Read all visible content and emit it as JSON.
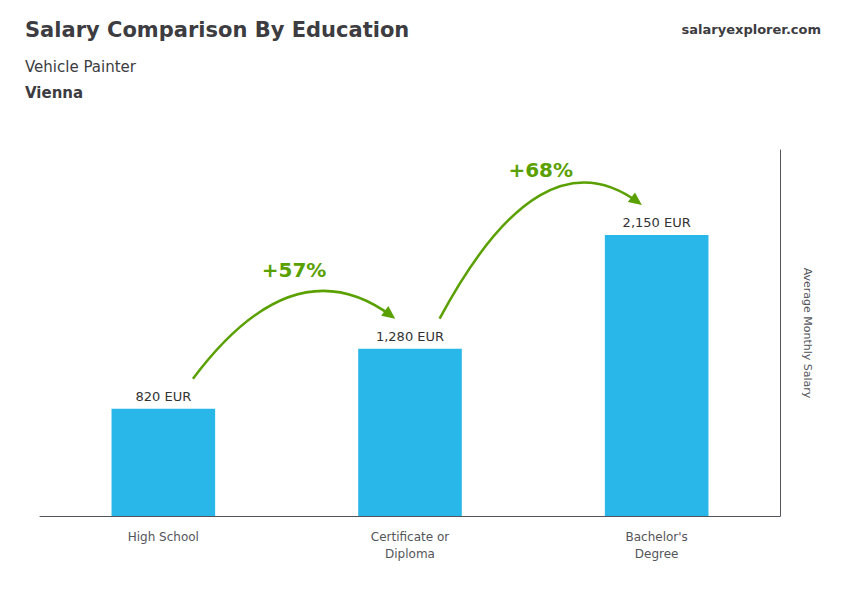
{
  "chart_data": {
    "type": "bar",
    "title": "Salary Comparison By Education",
    "subtitle": [
      "Vehicle Painter",
      "Vienna"
    ],
    "website": "salaryexplorer.com",
    "ylabel": "Average Monthly Salary",
    "categories": [
      "High School",
      "Certificate or\nDiploma",
      "Bachelor's\nDegree"
    ],
    "values": [
      820,
      1280,
      2150
    ],
    "value_labels": [
      "820 EUR",
      "1,280 EUR",
      "2,150 EUR"
    ],
    "data_labels": true,
    "annotations": [
      "+57%",
      "+68%"
    ],
    "color": "#29b6e8",
    "ylim": [
      0,
      2800
    ],
    "grid": false,
    "tick_labels": "x"
  }
}
